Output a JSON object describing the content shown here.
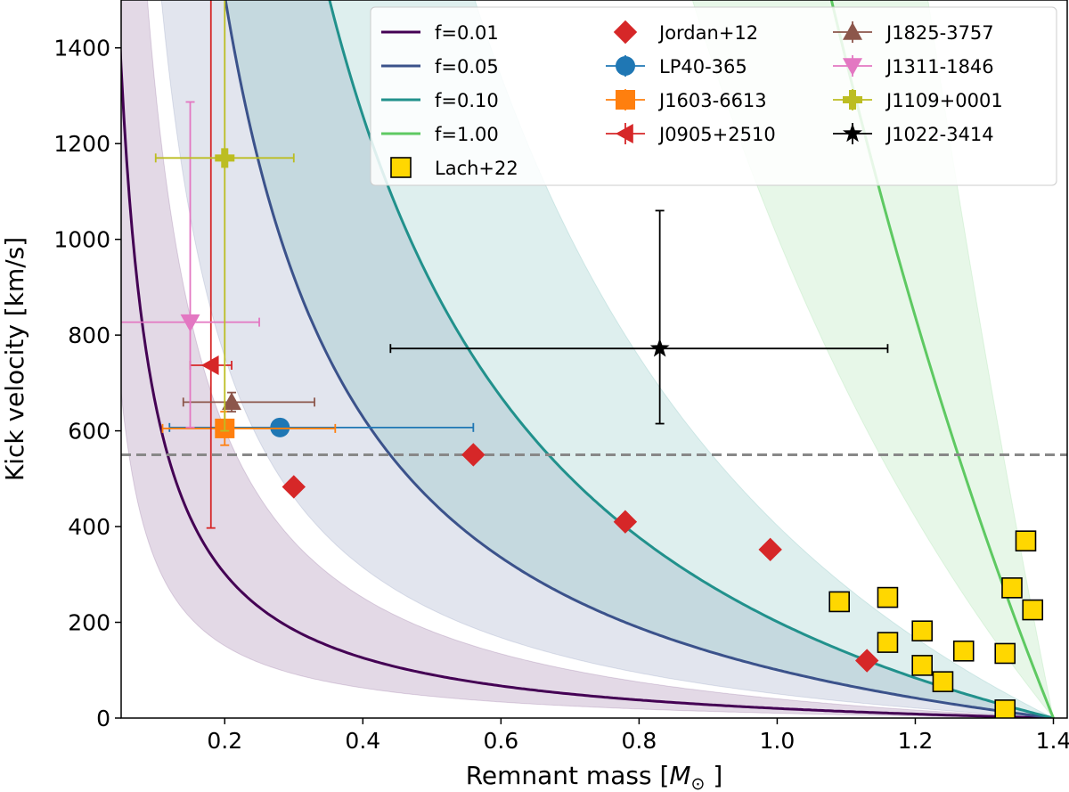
{
  "chart_data": {
    "type": "scatter",
    "xlabel": "Remnant mass [",
    "xlabel_symbol": "M",
    "xlabel_sub": "⊙",
    "xlabel_tail": " ]",
    "ylabel": "Kick velocity [km/s]",
    "xlim": [
      0.05,
      1.42
    ],
    "ylim": [
      0,
      1500
    ],
    "x_ticks": [
      0.2,
      0.4,
      0.6,
      0.8,
      1.0,
      1.2,
      1.4
    ],
    "x_tick_labels": [
      "0.2",
      "0.4",
      "0.6",
      "0.8",
      "1.0",
      "1.2",
      "1.4"
    ],
    "y_ticks": [
      0,
      200,
      400,
      600,
      800,
      1000,
      1200,
      1400
    ],
    "y_tick_labels": [
      "0",
      "200",
      "400",
      "600",
      "800",
      "1000",
      "1200",
      "1400"
    ],
    "reference_line": {
      "y": 550,
      "color": "#888888",
      "style": "dashed"
    },
    "curves": [
      {
        "name": "f=0.01",
        "color": "#440154",
        "f": 0.01,
        "band_low": 0.005,
        "band_high": 0.02
      },
      {
        "name": "f=0.05",
        "color": "#3b528b",
        "f": 0.05,
        "band_low": 0.025,
        "band_high": 0.1
      },
      {
        "name": "f=0.10",
        "color": "#21918c",
        "f": 0.1,
        "band_low": 0.05,
        "band_high": 0.2
      },
      {
        "name": "f=1.00",
        "color": "#5ec962",
        "f": 1.0,
        "band_low": 0.5,
        "band_high": 2.0
      }
    ],
    "series": [
      {
        "name": "Jordan+12",
        "marker": "diamond",
        "color": "#d62728",
        "x": [
          0.3,
          0.56,
          0.78,
          0.99,
          1.13
        ],
        "y": [
          483,
          550,
          410,
          352,
          120
        ]
      },
      {
        "name": "Lach+22",
        "marker": "square",
        "color": "#ffd700",
        "x": [
          1.09,
          1.16,
          1.16,
          1.21,
          1.21,
          1.24,
          1.27,
          1.33,
          1.33,
          1.34,
          1.36,
          1.37
        ],
        "y": [
          243,
          252,
          158,
          182,
          110,
          76,
          140,
          135,
          17,
          272,
          370,
          226
        ]
      },
      {
        "name": "LP40-365",
        "marker": "circle",
        "color": "#1f77b4",
        "x": [
          0.28
        ],
        "y": [
          607
        ],
        "xerr_low": [
          0.16
        ],
        "xerr_high": [
          0.28
        ],
        "yerr": [
          0
        ]
      },
      {
        "name": "J1603-6613",
        "marker": "square",
        "color": "#ff7f0e",
        "x": [
          0.2
        ],
        "y": [
          605
        ],
        "xerr_low": [
          0.09
        ],
        "xerr_high": [
          0.16
        ],
        "yerr": [
          35
        ]
      },
      {
        "name": "J0905+2510",
        "marker": "triangle-left",
        "color": "#d62728",
        "x": [
          0.18
        ],
        "y": [
          737
        ],
        "xerr_low": [
          0.03
        ],
        "xerr_high": [
          0.03
        ],
        "yerr_low": [
          340
        ],
        "yerr_high": [
          800
        ]
      },
      {
        "name": "J1825-3757",
        "marker": "triangle-up",
        "color": "#8c564b",
        "x": [
          0.21
        ],
        "y": [
          660
        ],
        "xerr_low": [
          0.07
        ],
        "xerr_high": [
          0.12
        ],
        "yerr": [
          20
        ]
      },
      {
        "name": "J1311-1846",
        "marker": "triangle-down",
        "color": "#e377c2",
        "x": [
          0.15
        ],
        "y": [
          827
        ],
        "xerr_low": [
          0.12
        ],
        "xerr_high": [
          0.1
        ],
        "yerr_low": [
          220
        ],
        "yerr_high": [
          460
        ]
      },
      {
        "name": "J1109+0001",
        "marker": "plus",
        "color": "#bcbd22",
        "x": [
          0.2
        ],
        "y": [
          1170
        ],
        "xerr_low": [
          0.1
        ],
        "xerr_high": [
          0.1
        ],
        "yerr_low": [
          570
        ],
        "yerr_high": [
          800
        ]
      },
      {
        "name": "J1022-3414",
        "marker": "star",
        "color": "#000000",
        "x": [
          0.83
        ],
        "y": [
          772
        ],
        "xerr_low": [
          0.39
        ],
        "xerr_high": [
          0.33
        ],
        "yerr_low": [
          157
        ],
        "yerr_high": [
          288
        ]
      }
    ],
    "legend": {
      "placement": "top-right",
      "columns": [
        [
          "f=0.01",
          "f=0.05",
          "f=0.10",
          "f=1.00",
          "Lach+22"
        ],
        [
          "Jordan+12",
          "LP40-365",
          "J1603-6613",
          "J0905+2510"
        ],
        [
          "J1825-3757",
          "J1311-1846",
          "J1109+0001",
          "J1022-3414"
        ]
      ]
    }
  }
}
